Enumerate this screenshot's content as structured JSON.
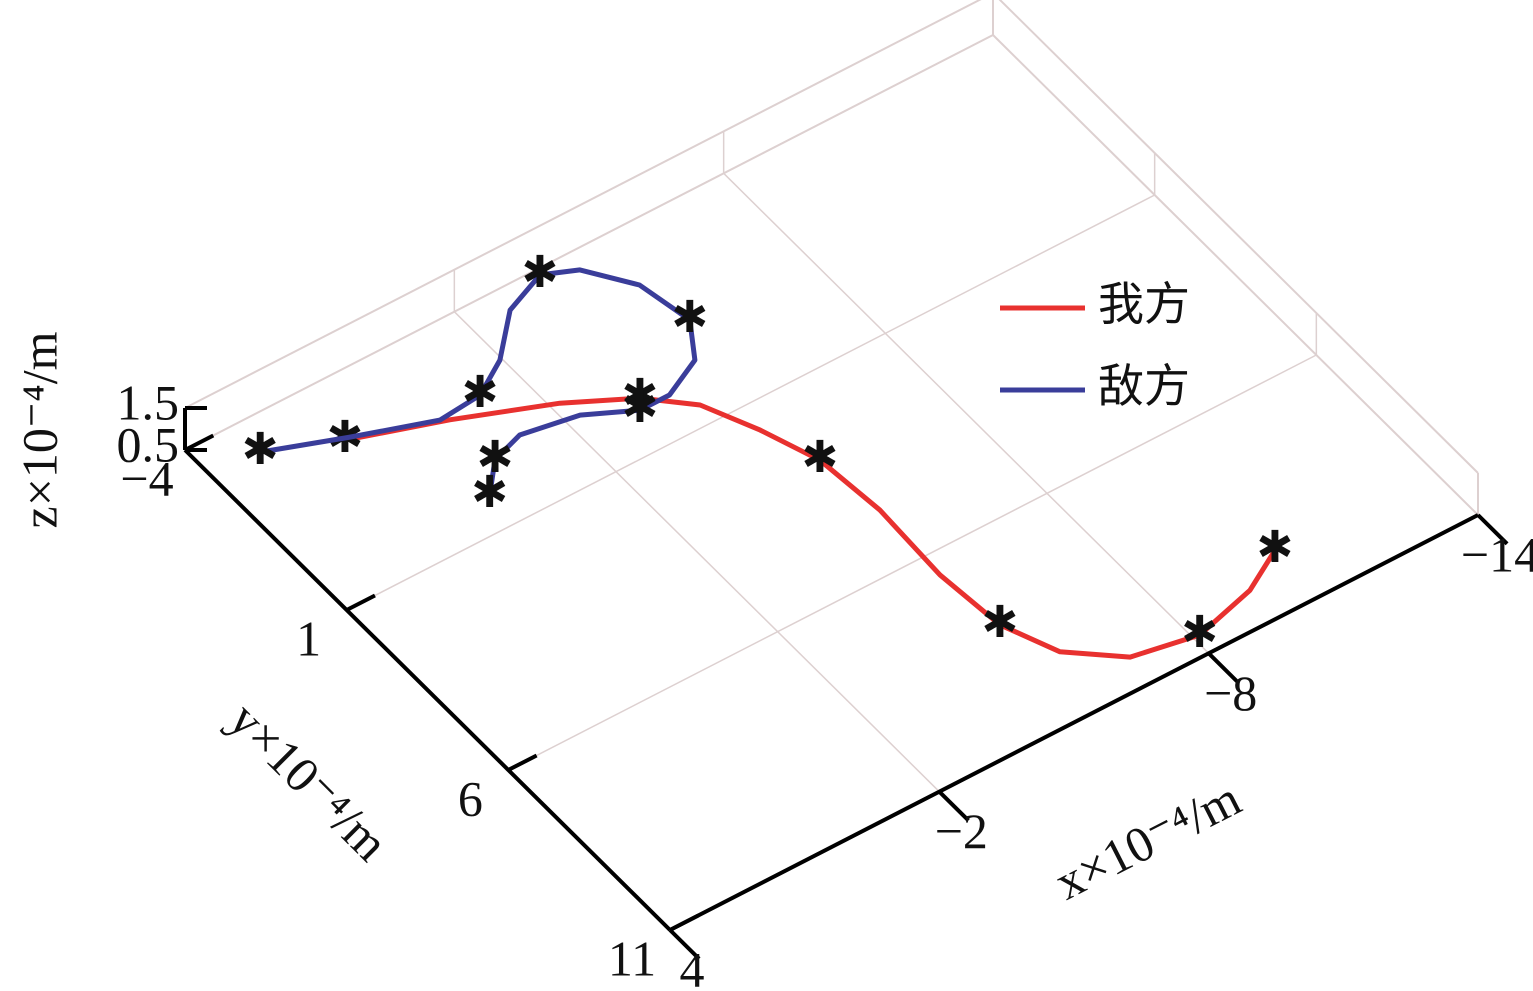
{
  "chart_data": {
    "type": "line3d",
    "xlabel": "x×10⁻⁴/m",
    "ylabel": "y×10⁻⁴/m",
    "zlabel": "z×10⁻⁴/m",
    "xlim": [
      4,
      -14
    ],
    "xticks": [
      4,
      {
        "value": -2,
        "label": "−2"
      },
      {
        "value": -8,
        "label": "−8"
      },
      {
        "value": -14,
        "label": "−14"
      }
    ],
    "ylim": [
      -4,
      11
    ],
    "yticks": [
      {
        "value": -4,
        "label": "−4"
      },
      1,
      6,
      11
    ],
    "zlim": [
      0.5,
      1.5
    ],
    "zticks": [
      0.5,
      1.5
    ],
    "grid": true,
    "legend": "upper right",
    "series": [
      {
        "name": "我方",
        "color": "#e8312f",
        "x": [
          1.82,
          -0.02,
          -1.88,
          -3.13,
          -3.91,
          -4.42,
          -4.85,
          -4.99,
          -4.91,
          -5.05,
          -5.53,
          -6.48,
          -7.83,
          -9.23,
          -10.19
        ],
        "y": [
          -2.08,
          -1.39,
          -0.57,
          0.17,
          0.95,
          2.1,
          3.35,
          5.01,
          6.98,
          8.64,
          9.83,
          10.68,
          10.96,
          10.57,
          10.01
        ],
        "z": [
          1,
          1,
          1,
          1,
          1,
          1,
          1,
          1,
          1,
          1,
          1,
          1,
          1,
          1,
          1
        ]
      },
      {
        "name": "敌方",
        "color": "#3a3d9a",
        "x": [
          3.24,
          1.7,
          0.13,
          -0.83,
          -1.64,
          -2.53,
          -3.49,
          -4.15,
          -4.8,
          -5.02,
          -4.5,
          -3.61,
          -2.95,
          -2.0,
          -0.82,
          -0.09,
          0.51
        ],
        "y": [
          -2.73,
          -2.09,
          -1.49,
          -1.58,
          -2.09,
          -3.01,
          -3.42,
          -3.1,
          -2.16,
          -0.91,
          -0.03,
          0.42,
          0.42,
          -0.11,
          -0.34,
          -0.09,
          0.58
        ],
        "z": [
          1,
          1,
          1,
          1,
          1,
          1,
          1,
          1,
          1,
          1,
          1,
          1,
          1,
          1,
          1,
          1,
          1
        ]
      }
    ]
  }
}
